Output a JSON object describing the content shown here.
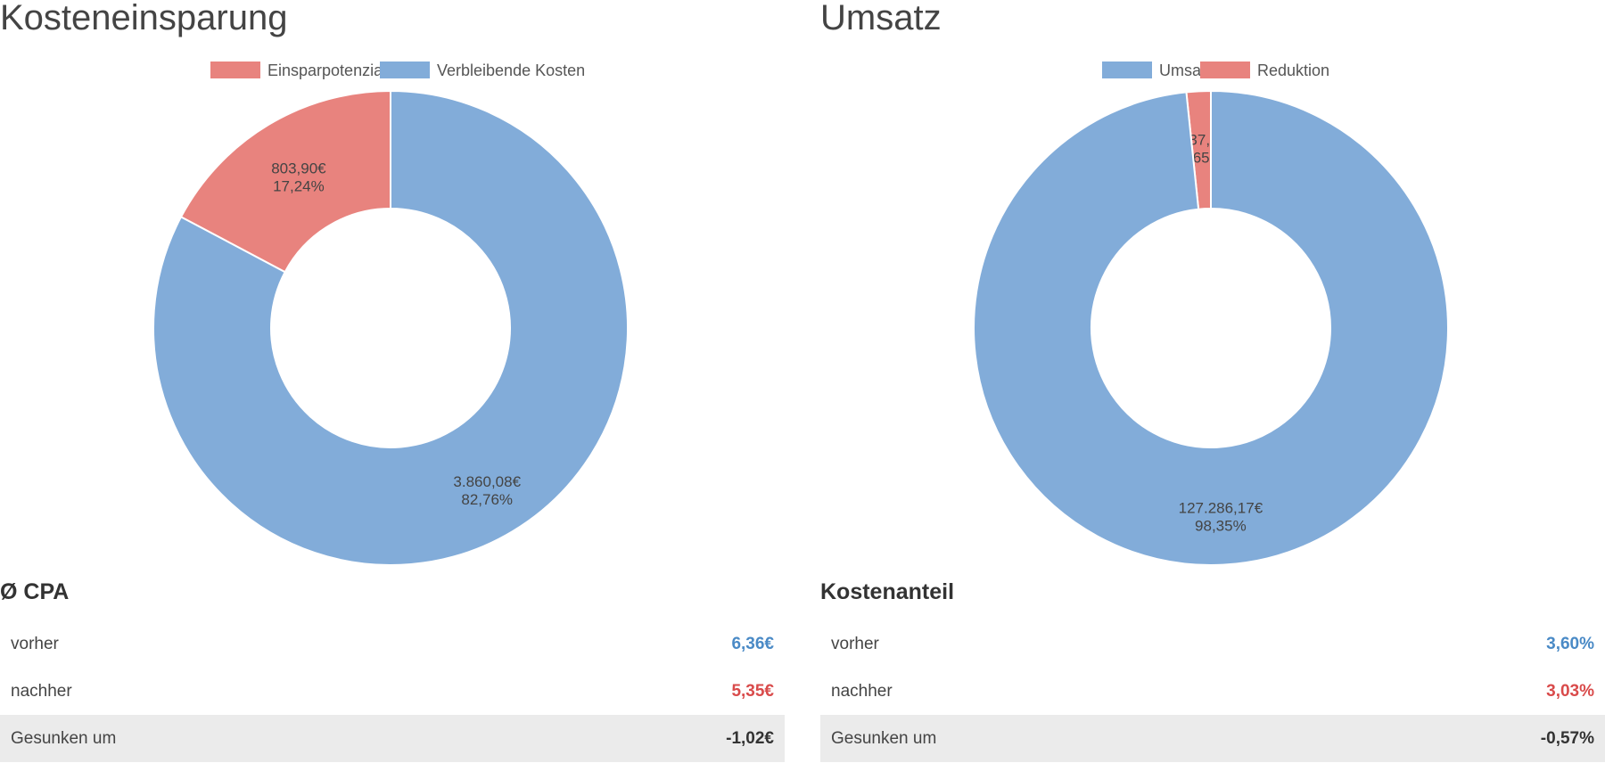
{
  "colors": {
    "red": "#e8837e",
    "blue": "#82acd9",
    "value_blue": "#4a8ac6",
    "value_red": "#d94b4b"
  },
  "chart_data": [
    {
      "type": "pie",
      "title": "Kosteneinsparung",
      "donut": true,
      "slices": [
        {
          "name": "Einsparpotenzial",
          "value": 803.9,
          "value_label": "803,90€",
          "pct_label": "17,24%",
          "color": "#e8837e"
        },
        {
          "name": "Verbleibende Kosten",
          "value": 3860.08,
          "value_label": "3.860,08€",
          "pct_label": "82,76%",
          "color": "#82acd9"
        }
      ],
      "legend": [
        "Einsparpotenzial",
        "Verbleibende Kosten"
      ],
      "legend_position": "top"
    },
    {
      "type": "pie",
      "title": "Umsatz",
      "donut": true,
      "slices": [
        {
          "name": "Reduktion",
          "value": 2137.76,
          "value_label": "2.137,76€",
          "pct_label": "1,65%",
          "color": "#e8837e"
        },
        {
          "name": "Umsatz",
          "value": 127286.17,
          "value_label": "127.286,17€",
          "pct_label": "98,35%",
          "color": "#82acd9"
        }
      ],
      "legend": [
        "Umsatz",
        "Reduktion"
      ],
      "legend_position": "top"
    }
  ],
  "tables": [
    {
      "title": "Ø CPA",
      "rows": [
        {
          "label": "vorher",
          "value": "6,36€"
        },
        {
          "label": "nachher",
          "value": "5,35€"
        },
        {
          "label": "Gesunken um",
          "value": "-1,02€"
        }
      ]
    },
    {
      "title": "Kostenanteil",
      "rows": [
        {
          "label": "vorher",
          "value": "3,60%"
        },
        {
          "label": "nachher",
          "value": "3,03%"
        },
        {
          "label": "Gesunken um",
          "value": "-0,57%"
        }
      ]
    }
  ]
}
